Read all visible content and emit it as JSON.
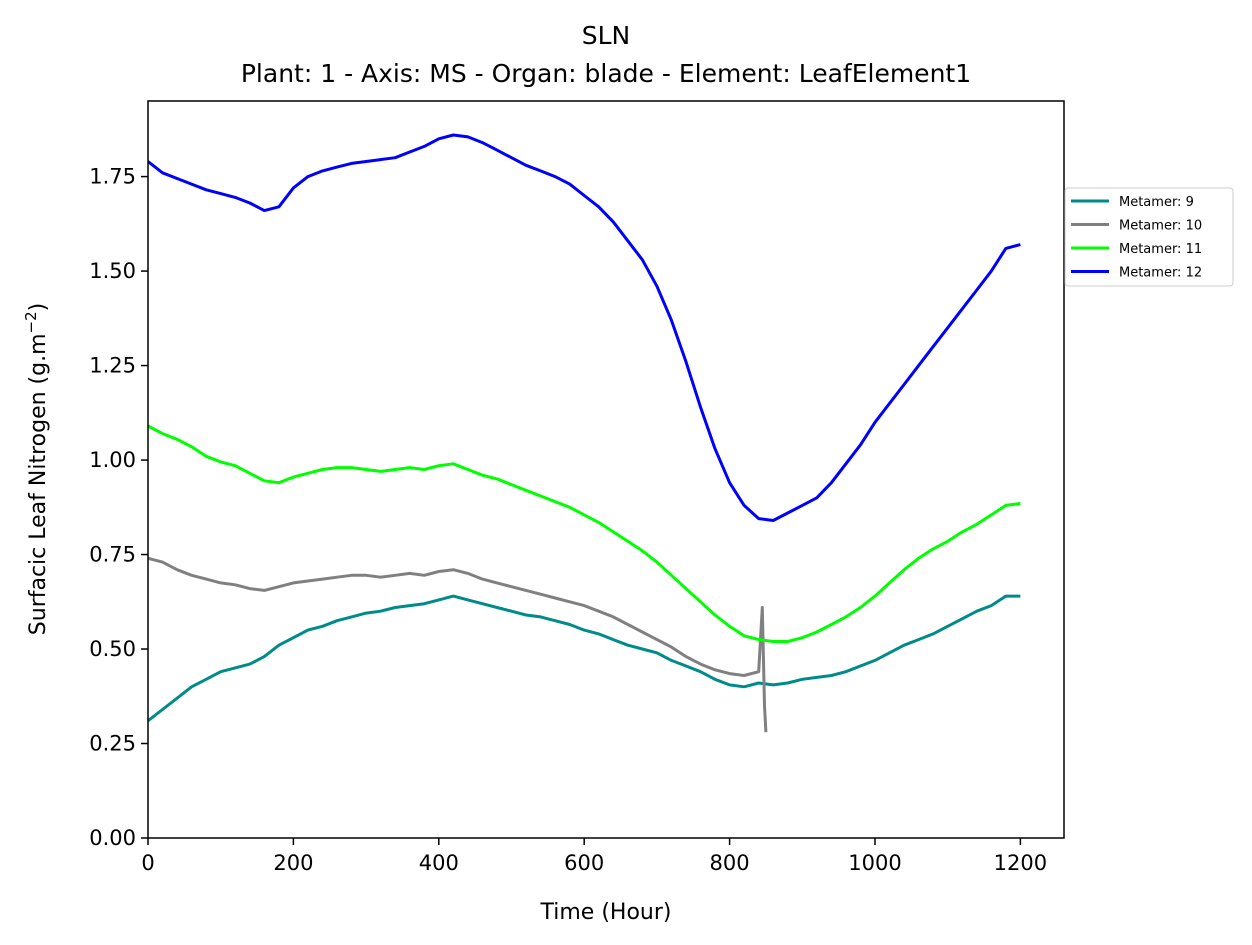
{
  "chart_data": {
    "type": "line",
    "title": "SLN",
    "subtitle": "Plant: 1 - Axis: MS - Organ: blade - Element: LeafElement1",
    "xlabel": "Time (Hour)",
    "ylabel": "Surfacic Leaf Nitrogen (g.m",
    "ylabel_sup": "−2",
    "ylabel_end": ")",
    "xlim": [
      0,
      1260
    ],
    "ylim": [
      0,
      1.95
    ],
    "xticks": [
      "0",
      "200",
      "400",
      "600",
      "800",
      "1000",
      "1200"
    ],
    "yticks": [
      "0.00",
      "0.25",
      "0.50",
      "0.75",
      "1.00",
      "1.25",
      "1.50",
      "1.75"
    ],
    "legend_position": "right, outside plot",
    "series": [
      {
        "name": "Metamer: 9",
        "color": "#008b8b",
        "x": [
          0,
          20,
          40,
          60,
          80,
          100,
          120,
          140,
          160,
          180,
          200,
          220,
          240,
          260,
          280,
          300,
          320,
          340,
          360,
          380,
          400,
          420,
          440,
          460,
          480,
          500,
          520,
          540,
          560,
          580,
          600,
          620,
          640,
          660,
          680,
          700,
          720,
          740,
          760,
          780,
          800,
          820,
          840,
          860,
          880,
          900,
          920,
          940,
          960,
          980,
          1000,
          1020,
          1040,
          1060,
          1080,
          1100,
          1120,
          1140,
          1160,
          1180,
          1200
        ],
        "y": [
          0.31,
          0.34,
          0.37,
          0.4,
          0.42,
          0.44,
          0.45,
          0.46,
          0.48,
          0.51,
          0.53,
          0.55,
          0.56,
          0.575,
          0.585,
          0.595,
          0.6,
          0.61,
          0.615,
          0.62,
          0.63,
          0.64,
          0.63,
          0.62,
          0.61,
          0.6,
          0.59,
          0.585,
          0.575,
          0.565,
          0.55,
          0.54,
          0.525,
          0.51,
          0.5,
          0.49,
          0.47,
          0.455,
          0.44,
          0.42,
          0.405,
          0.4,
          0.41,
          0.405,
          0.41,
          0.42,
          0.425,
          0.43,
          0.44,
          0.455,
          0.47,
          0.49,
          0.51,
          0.525,
          0.54,
          0.56,
          0.58,
          0.6,
          0.615,
          0.64,
          0.64
        ]
      },
      {
        "name": "Metamer: 10",
        "color": "#808080",
        "x": [
          0,
          20,
          40,
          60,
          80,
          100,
          120,
          140,
          160,
          180,
          200,
          220,
          240,
          260,
          280,
          300,
          320,
          340,
          360,
          380,
          400,
          420,
          440,
          460,
          480,
          500,
          520,
          540,
          560,
          580,
          600,
          620,
          640,
          660,
          680,
          700,
          720,
          740,
          760,
          780,
          800,
          820,
          840,
          845,
          848,
          850
        ],
        "y": [
          0.74,
          0.73,
          0.71,
          0.695,
          0.685,
          0.675,
          0.67,
          0.66,
          0.655,
          0.665,
          0.675,
          0.68,
          0.685,
          0.69,
          0.695,
          0.695,
          0.69,
          0.695,
          0.7,
          0.695,
          0.705,
          0.71,
          0.7,
          0.685,
          0.675,
          0.665,
          0.655,
          0.645,
          0.635,
          0.625,
          0.615,
          0.6,
          0.585,
          0.565,
          0.545,
          0.525,
          0.505,
          0.48,
          0.46,
          0.445,
          0.435,
          0.43,
          0.44,
          0.61,
          0.35,
          0.28
        ]
      },
      {
        "name": "Metamer: 11",
        "color": "#00ff00",
        "x": [
          0,
          20,
          40,
          60,
          80,
          100,
          120,
          140,
          160,
          180,
          200,
          220,
          240,
          260,
          280,
          300,
          320,
          340,
          360,
          380,
          400,
          420,
          440,
          460,
          480,
          500,
          520,
          540,
          560,
          580,
          600,
          620,
          640,
          660,
          680,
          700,
          720,
          740,
          760,
          780,
          800,
          820,
          840,
          860,
          880,
          900,
          920,
          940,
          960,
          980,
          1000,
          1020,
          1040,
          1060,
          1080,
          1100,
          1120,
          1140,
          1160,
          1180,
          1200
        ],
        "y": [
          1.09,
          1.07,
          1.055,
          1.035,
          1.01,
          0.995,
          0.985,
          0.965,
          0.945,
          0.94,
          0.955,
          0.965,
          0.975,
          0.98,
          0.98,
          0.975,
          0.97,
          0.975,
          0.98,
          0.975,
          0.985,
          0.99,
          0.975,
          0.96,
          0.95,
          0.935,
          0.92,
          0.905,
          0.89,
          0.875,
          0.855,
          0.835,
          0.81,
          0.785,
          0.76,
          0.73,
          0.695,
          0.66,
          0.625,
          0.59,
          0.56,
          0.535,
          0.525,
          0.52,
          0.52,
          0.53,
          0.545,
          0.565,
          0.585,
          0.61,
          0.64,
          0.675,
          0.71,
          0.74,
          0.765,
          0.785,
          0.81,
          0.83,
          0.855,
          0.88,
          0.885
        ]
      },
      {
        "name": "Metamer: 12",
        "color": "#0000ff",
        "x": [
          0,
          20,
          40,
          60,
          80,
          100,
          120,
          140,
          160,
          180,
          200,
          220,
          240,
          260,
          280,
          300,
          320,
          340,
          360,
          380,
          400,
          420,
          440,
          460,
          480,
          500,
          520,
          540,
          560,
          580,
          600,
          620,
          640,
          660,
          680,
          700,
          720,
          740,
          760,
          780,
          800,
          820,
          840,
          860,
          880,
          900,
          920,
          940,
          960,
          980,
          1000,
          1020,
          1040,
          1060,
          1080,
          1100,
          1120,
          1140,
          1160,
          1180,
          1200
        ],
        "y": [
          1.79,
          1.76,
          1.745,
          1.73,
          1.715,
          1.705,
          1.695,
          1.68,
          1.66,
          1.67,
          1.72,
          1.75,
          1.765,
          1.775,
          1.785,
          1.79,
          1.795,
          1.8,
          1.815,
          1.83,
          1.85,
          1.86,
          1.855,
          1.84,
          1.82,
          1.8,
          1.78,
          1.765,
          1.75,
          1.73,
          1.7,
          1.67,
          1.63,
          1.58,
          1.53,
          1.46,
          1.37,
          1.26,
          1.14,
          1.03,
          0.94,
          0.88,
          0.845,
          0.84,
          0.86,
          0.88,
          0.9,
          0.94,
          0.99,
          1.04,
          1.1,
          1.15,
          1.2,
          1.25,
          1.3,
          1.35,
          1.4,
          1.45,
          1.5,
          1.56,
          1.57
        ]
      }
    ]
  }
}
